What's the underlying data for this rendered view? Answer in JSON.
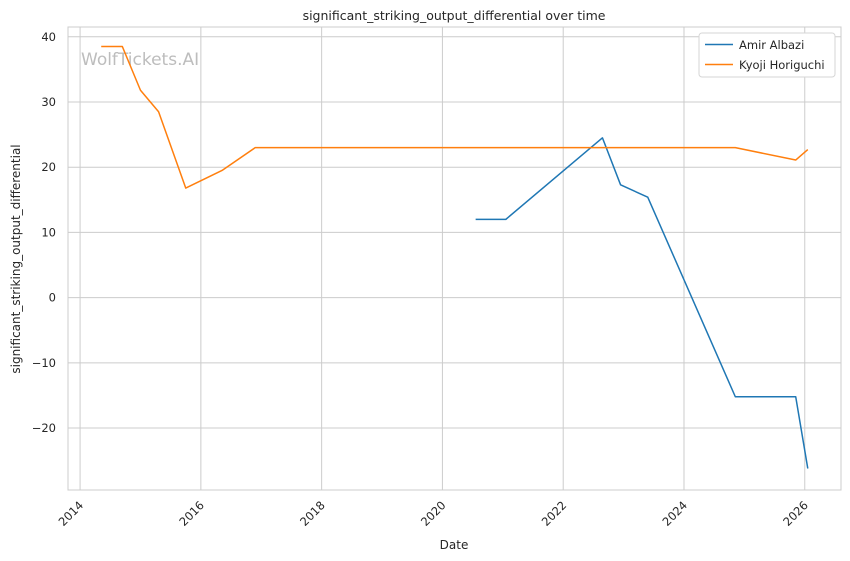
{
  "chart_data": {
    "type": "line",
    "title": "significant_striking_output_differential over time",
    "xlabel": "Date",
    "ylabel": "significant_striking_output_differential",
    "watermark": "WolfTickets.AI",
    "xlim": [
      2013.8,
      2026.6
    ],
    "ylim": [
      -29.5,
      41.5
    ],
    "x_ticks": [
      2014,
      2016,
      2018,
      2020,
      2022,
      2024,
      2026
    ],
    "x_tick_labels": [
      "2014",
      "2016",
      "2018",
      "2020",
      "2022",
      "2024",
      "2026"
    ],
    "y_ticks": [
      -20,
      -10,
      0,
      10,
      20,
      30,
      40
    ],
    "y_tick_labels": [
      "−20",
      "−10",
      "0",
      "10",
      "20",
      "30",
      "40"
    ],
    "grid": true,
    "legend_position": "top-right",
    "series": [
      {
        "name": "Amir Albazi",
        "color": "#1f77b4",
        "x": [
          2020.55,
          2021.05,
          2022.65,
          2022.95,
          2023.4,
          2024.85,
          2025.85,
          2026.05
        ],
        "y": [
          12.0,
          12.0,
          24.5,
          17.3,
          15.4,
          -15.2,
          -15.2,
          -26.2
        ]
      },
      {
        "name": "Kyoji Horiguchi",
        "color": "#ff7f0e",
        "x": [
          2014.35,
          2014.7,
          2015.0,
          2015.3,
          2015.75,
          2016.35,
          2016.9,
          2024.85,
          2025.85,
          2026.05
        ],
        "y": [
          38.5,
          38.5,
          31.8,
          28.5,
          16.8,
          19.5,
          23.0,
          23.0,
          21.1,
          22.7
        ]
      }
    ]
  }
}
